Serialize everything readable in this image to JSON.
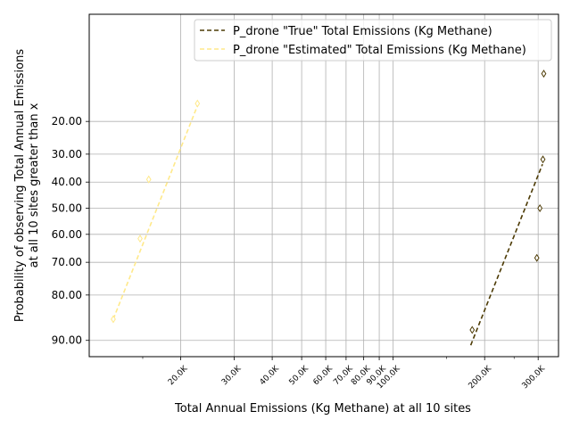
{
  "chart_data": {
    "type": "line",
    "xlabel": "Total Annual Emissions (Kg Methane) at all 10 sites",
    "ylabel": [
      "Probability of observing Total Annual Emissions",
      "at all 10 sites greater than x"
    ],
    "x_scale": "log",
    "y_scale": "probability",
    "xlim": [
      10000,
      350000
    ],
    "ylim": [
      92.5,
      3
    ],
    "x_ticks": [
      {
        "value": 20000,
        "label": "20.0K"
      },
      {
        "value": 30000,
        "label": "30.0K"
      },
      {
        "value": 40000,
        "label": "40.0K"
      },
      {
        "value": 50000,
        "label": "50.0K"
      },
      {
        "value": 60000,
        "label": "60.0K"
      },
      {
        "value": 70000,
        "label": "70.0K"
      },
      {
        "value": 80000,
        "label": "80.0K"
      },
      {
        "value": 90000,
        "label": "90.0K"
      },
      {
        "value": 100000,
        "label": "100.0K"
      },
      {
        "value": 200000,
        "label": "200.0K"
      },
      {
        "value": 300000,
        "label": "300.0K"
      }
    ],
    "y_ticks": [
      {
        "value": 20,
        "label": "20.00"
      },
      {
        "value": 30,
        "label": "30.00"
      },
      {
        "value": 40,
        "label": "40.00"
      },
      {
        "value": 50,
        "label": "50.00"
      },
      {
        "value": 60,
        "label": "60.00"
      },
      {
        "value": 70,
        "label": "70.00"
      },
      {
        "value": 80,
        "label": "80.00"
      },
      {
        "value": 90,
        "label": "90.00"
      }
    ],
    "grid": true,
    "legend_placement": "top-right",
    "series": [
      {
        "name": "P_drone \"True\" Total Emissions (Kg Methane)",
        "color": "#4d3b05",
        "linestyle": "dashed",
        "fit_line": [
          [
            180000,
            90.8
          ],
          [
            310000,
            33.5
          ]
        ],
        "points": [
          [
            182000,
            88.1
          ],
          [
            297000,
            68.5
          ],
          [
            304000,
            50.0
          ],
          [
            311000,
            31.8
          ],
          [
            313000,
            9.6
          ]
        ]
      },
      {
        "name": "P_drone \"Estimated\" Total Emissions (Kg Methane)",
        "color": "#ffe98a",
        "linestyle": "dashed",
        "fit_line": [
          [
            12000,
            85.9
          ],
          [
            23000,
            15.0
          ]
        ],
        "points": [
          [
            12000,
            85.9
          ],
          [
            14700,
            61.6
          ],
          [
            15700,
            39.0
          ],
          [
            22700,
            15.5
          ]
        ]
      }
    ]
  }
}
